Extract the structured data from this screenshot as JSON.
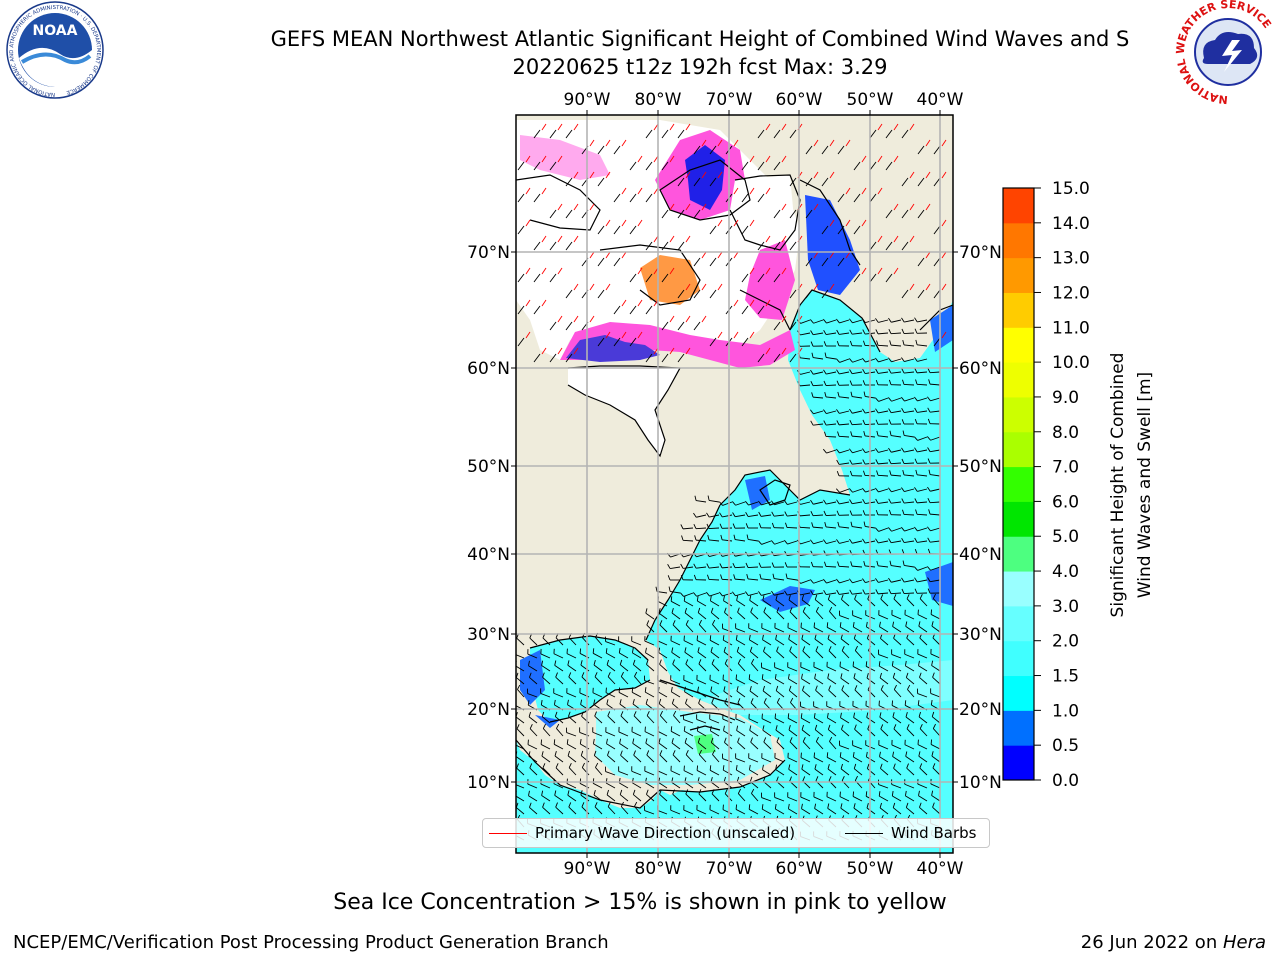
{
  "title": {
    "line1": "GEFS MEAN Northwest Atlantic Significant Height of Combined Wind Waves and S",
    "line2": "20220625 t12z 192h fcst   Max: 3.29"
  },
  "logos": {
    "noaa_text": "NOAA",
    "noaa_ring": "NATIONAL OCEANIC AND ATMOSPHERIC ADMINISTRATION · U.S. DEPARTMENT OF COMMERCE",
    "nws_ring": "NATIONAL WEATHER SERVICE"
  },
  "map": {
    "lon_labels": [
      "90°W",
      "80°W",
      "70°W",
      "60°W",
      "50°W",
      "40°W"
    ],
    "lat_labels": [
      "70°N",
      "60°N",
      "50°N",
      "40°N",
      "30°N",
      "20°N",
      "10°N"
    ],
    "extent": {
      "west": "100°W",
      "east": "38°W",
      "south": "1°N",
      "north": "80°N"
    },
    "projection": "Mercator",
    "gridlines": true,
    "land_color": "#efecdc",
    "ocean_color_primary": "#55ffff",
    "ice_color": "#ffffff"
  },
  "colorbar": {
    "label_line1": "Significant Height of Combined",
    "label_line2": "Wind Waves and Swell [m]",
    "ticks": [
      "0.0",
      "0.5",
      "1.0",
      "1.5",
      "2.0",
      "3.0",
      "4.0",
      "5.0",
      "6.0",
      "7.0",
      "8.0",
      "9.0",
      "10.0",
      "11.0",
      "12.0",
      "13.0",
      "14.0",
      "15.0"
    ],
    "colors": [
      "#0000ff",
      "#0070ff",
      "#00ffff",
      "#40ffff",
      "#66ffff",
      "#99ffff",
      "#4dff80",
      "#00e600",
      "#33ff00",
      "#aaff00",
      "#ccff00",
      "#eeff00",
      "#ffff00",
      "#ffcc00",
      "#ff9900",
      "#ff7700",
      "#ff4400",
      "#ff0000"
    ]
  },
  "legend": {
    "primary_wave": {
      "label": "Primary Wave Direction (unscaled)",
      "color": "#ff0000"
    },
    "wind_barbs": {
      "label": "Wind Barbs",
      "color": "#000000"
    }
  },
  "note": "Sea Ice Concentration > 15% is shown in pink to yellow",
  "footer": {
    "left": "NCEP/EMC/Verification Post Processing Product Generation Branch",
    "right_date": "26 Jun 2022 on ",
    "right_host": "Hera"
  }
}
